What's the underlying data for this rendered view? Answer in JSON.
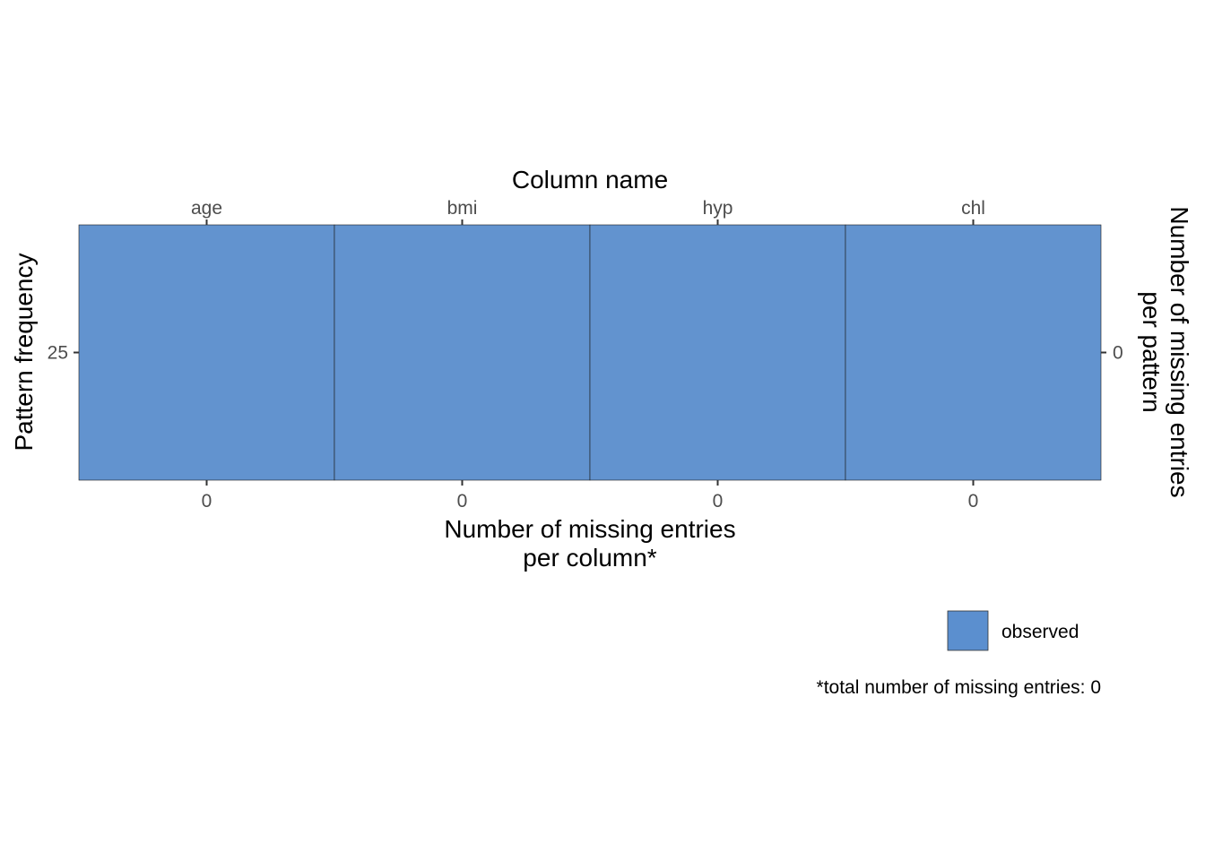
{
  "chart_data": {
    "type": "heatmap",
    "columns": [
      "age",
      "bmi",
      "hyp",
      "chl"
    ],
    "patterns": [
      {
        "frequency": 25,
        "missing_per_pattern": 0,
        "cells": [
          "observed",
          "observed",
          "observed",
          "observed"
        ]
      }
    ],
    "missing_per_column": [
      0,
      0,
      0,
      0
    ],
    "x_top_label": "Column name",
    "x_bottom_label_line1": "Number of missing entries",
    "x_bottom_label_line2": "per column*",
    "y_left_label": "Pattern frequency",
    "y_right_label_line1": "Number of missing entries",
    "y_right_label_line2": "per pattern",
    "legend": [
      {
        "label": "observed",
        "color": "#5b8fcf"
      }
    ],
    "legend_position": "bottom-right",
    "caption": "*total number of missing entries: 0",
    "colors": {
      "observed": "#6293cf",
      "tile_border": "#1a1a1a",
      "tick_text": "#4d4d4d",
      "tick_line": "#333333"
    }
  }
}
